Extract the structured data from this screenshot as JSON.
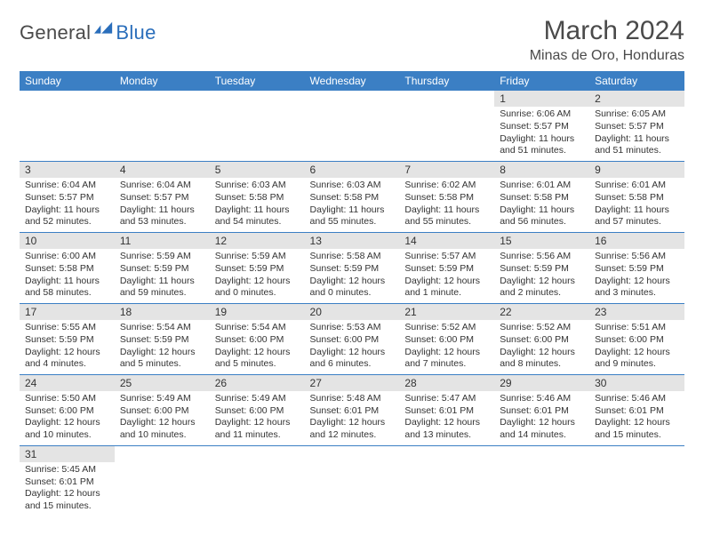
{
  "logo": {
    "text_dark": "General",
    "text_blue": "Blue"
  },
  "title": "March 2024",
  "location": "Minas de Oro, Honduras",
  "colors": {
    "header_bg": "#3b7fc4",
    "header_text": "#ffffff",
    "daynum_bg": "#e4e4e4",
    "row_border": "#3b7fc4",
    "logo_blue": "#2a6ebb",
    "text": "#333333",
    "title_text": "#4a4a4a"
  },
  "weekdays": [
    "Sunday",
    "Monday",
    "Tuesday",
    "Wednesday",
    "Thursday",
    "Friday",
    "Saturday"
  ],
  "weeks": [
    [
      {
        "n": "",
        "sr": "",
        "ss": "",
        "dl": ""
      },
      {
        "n": "",
        "sr": "",
        "ss": "",
        "dl": ""
      },
      {
        "n": "",
        "sr": "",
        "ss": "",
        "dl": ""
      },
      {
        "n": "",
        "sr": "",
        "ss": "",
        "dl": ""
      },
      {
        "n": "",
        "sr": "",
        "ss": "",
        "dl": ""
      },
      {
        "n": "1",
        "sr": "Sunrise: 6:06 AM",
        "ss": "Sunset: 5:57 PM",
        "dl": "Daylight: 11 hours and 51 minutes."
      },
      {
        "n": "2",
        "sr": "Sunrise: 6:05 AM",
        "ss": "Sunset: 5:57 PM",
        "dl": "Daylight: 11 hours and 51 minutes."
      }
    ],
    [
      {
        "n": "3",
        "sr": "Sunrise: 6:04 AM",
        "ss": "Sunset: 5:57 PM",
        "dl": "Daylight: 11 hours and 52 minutes."
      },
      {
        "n": "4",
        "sr": "Sunrise: 6:04 AM",
        "ss": "Sunset: 5:57 PM",
        "dl": "Daylight: 11 hours and 53 minutes."
      },
      {
        "n": "5",
        "sr": "Sunrise: 6:03 AM",
        "ss": "Sunset: 5:58 PM",
        "dl": "Daylight: 11 hours and 54 minutes."
      },
      {
        "n": "6",
        "sr": "Sunrise: 6:03 AM",
        "ss": "Sunset: 5:58 PM",
        "dl": "Daylight: 11 hours and 55 minutes."
      },
      {
        "n": "7",
        "sr": "Sunrise: 6:02 AM",
        "ss": "Sunset: 5:58 PM",
        "dl": "Daylight: 11 hours and 55 minutes."
      },
      {
        "n": "8",
        "sr": "Sunrise: 6:01 AM",
        "ss": "Sunset: 5:58 PM",
        "dl": "Daylight: 11 hours and 56 minutes."
      },
      {
        "n": "9",
        "sr": "Sunrise: 6:01 AM",
        "ss": "Sunset: 5:58 PM",
        "dl": "Daylight: 11 hours and 57 minutes."
      }
    ],
    [
      {
        "n": "10",
        "sr": "Sunrise: 6:00 AM",
        "ss": "Sunset: 5:58 PM",
        "dl": "Daylight: 11 hours and 58 minutes."
      },
      {
        "n": "11",
        "sr": "Sunrise: 5:59 AM",
        "ss": "Sunset: 5:59 PM",
        "dl": "Daylight: 11 hours and 59 minutes."
      },
      {
        "n": "12",
        "sr": "Sunrise: 5:59 AM",
        "ss": "Sunset: 5:59 PM",
        "dl": "Daylight: 12 hours and 0 minutes."
      },
      {
        "n": "13",
        "sr": "Sunrise: 5:58 AM",
        "ss": "Sunset: 5:59 PM",
        "dl": "Daylight: 12 hours and 0 minutes."
      },
      {
        "n": "14",
        "sr": "Sunrise: 5:57 AM",
        "ss": "Sunset: 5:59 PM",
        "dl": "Daylight: 12 hours and 1 minute."
      },
      {
        "n": "15",
        "sr": "Sunrise: 5:56 AM",
        "ss": "Sunset: 5:59 PM",
        "dl": "Daylight: 12 hours and 2 minutes."
      },
      {
        "n": "16",
        "sr": "Sunrise: 5:56 AM",
        "ss": "Sunset: 5:59 PM",
        "dl": "Daylight: 12 hours and 3 minutes."
      }
    ],
    [
      {
        "n": "17",
        "sr": "Sunrise: 5:55 AM",
        "ss": "Sunset: 5:59 PM",
        "dl": "Daylight: 12 hours and 4 minutes."
      },
      {
        "n": "18",
        "sr": "Sunrise: 5:54 AM",
        "ss": "Sunset: 5:59 PM",
        "dl": "Daylight: 12 hours and 5 minutes."
      },
      {
        "n": "19",
        "sr": "Sunrise: 5:54 AM",
        "ss": "Sunset: 6:00 PM",
        "dl": "Daylight: 12 hours and 5 minutes."
      },
      {
        "n": "20",
        "sr": "Sunrise: 5:53 AM",
        "ss": "Sunset: 6:00 PM",
        "dl": "Daylight: 12 hours and 6 minutes."
      },
      {
        "n": "21",
        "sr": "Sunrise: 5:52 AM",
        "ss": "Sunset: 6:00 PM",
        "dl": "Daylight: 12 hours and 7 minutes."
      },
      {
        "n": "22",
        "sr": "Sunrise: 5:52 AM",
        "ss": "Sunset: 6:00 PM",
        "dl": "Daylight: 12 hours and 8 minutes."
      },
      {
        "n": "23",
        "sr": "Sunrise: 5:51 AM",
        "ss": "Sunset: 6:00 PM",
        "dl": "Daylight: 12 hours and 9 minutes."
      }
    ],
    [
      {
        "n": "24",
        "sr": "Sunrise: 5:50 AM",
        "ss": "Sunset: 6:00 PM",
        "dl": "Daylight: 12 hours and 10 minutes."
      },
      {
        "n": "25",
        "sr": "Sunrise: 5:49 AM",
        "ss": "Sunset: 6:00 PM",
        "dl": "Daylight: 12 hours and 10 minutes."
      },
      {
        "n": "26",
        "sr": "Sunrise: 5:49 AM",
        "ss": "Sunset: 6:00 PM",
        "dl": "Daylight: 12 hours and 11 minutes."
      },
      {
        "n": "27",
        "sr": "Sunrise: 5:48 AM",
        "ss": "Sunset: 6:01 PM",
        "dl": "Daylight: 12 hours and 12 minutes."
      },
      {
        "n": "28",
        "sr": "Sunrise: 5:47 AM",
        "ss": "Sunset: 6:01 PM",
        "dl": "Daylight: 12 hours and 13 minutes."
      },
      {
        "n": "29",
        "sr": "Sunrise: 5:46 AM",
        "ss": "Sunset: 6:01 PM",
        "dl": "Daylight: 12 hours and 14 minutes."
      },
      {
        "n": "30",
        "sr": "Sunrise: 5:46 AM",
        "ss": "Sunset: 6:01 PM",
        "dl": "Daylight: 12 hours and 15 minutes."
      }
    ],
    [
      {
        "n": "31",
        "sr": "Sunrise: 5:45 AM",
        "ss": "Sunset: 6:01 PM",
        "dl": "Daylight: 12 hours and 15 minutes."
      },
      {
        "n": "",
        "sr": "",
        "ss": "",
        "dl": ""
      },
      {
        "n": "",
        "sr": "",
        "ss": "",
        "dl": ""
      },
      {
        "n": "",
        "sr": "",
        "ss": "",
        "dl": ""
      },
      {
        "n": "",
        "sr": "",
        "ss": "",
        "dl": ""
      },
      {
        "n": "",
        "sr": "",
        "ss": "",
        "dl": ""
      },
      {
        "n": "",
        "sr": "",
        "ss": "",
        "dl": ""
      }
    ]
  ]
}
